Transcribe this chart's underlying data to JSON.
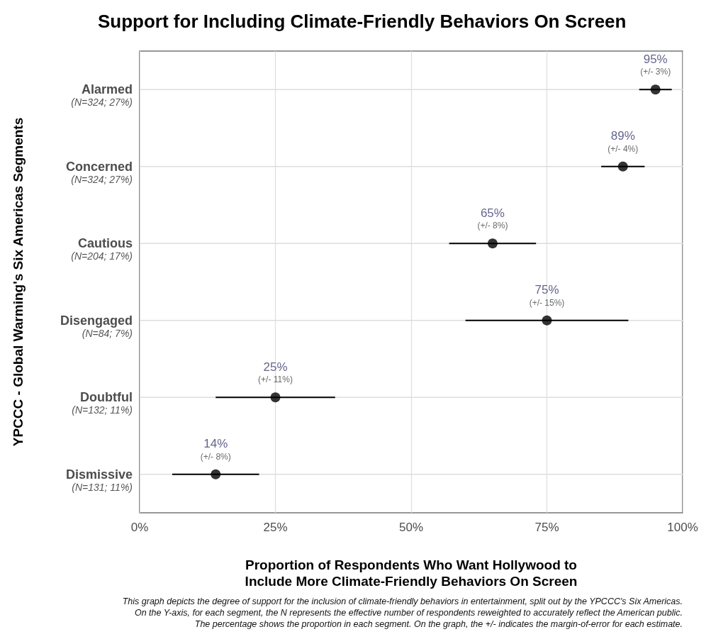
{
  "chart_data": {
    "type": "scatter",
    "orientation": "horizontal",
    "title": "Support for Including Climate-Friendly Behaviors On Screen",
    "xlabel": "Proportion of Respondents Who Want Hollywood to\nInclude More Climate-Friendly Behaviors On Screen",
    "ylabel": "YPCCC - Global Warming's Six Americas Segments",
    "categories": [
      "Alarmed\n(N=324; 27%)",
      "Concerned\n(N=324; 27%)",
      "Cautious\n(N=204; 17%)",
      "Disengaged\n(N=84; 7%)",
      "Doubtful\n(N=132; 11%)",
      "Dismissive\n(N=131; 11%)"
    ],
    "values": [
      95,
      89,
      65,
      75,
      25,
      14
    ],
    "errors": [
      3,
      4,
      8,
      15,
      11,
      8
    ],
    "value_labels": [
      "95%\n(+/- 3%)",
      "89%\n(+/- 4%)",
      "65%\n(+/- 8%)",
      "75%\n(+/- 15%)",
      "25%\n(+/- 11%)",
      "14%\n(+/- 8%)"
    ],
    "color": "#000000",
    "marker": "circle",
    "xlim": [
      0,
      100
    ],
    "xticks": [
      {
        "value": 0,
        "label": "0%"
      },
      {
        "value": 25,
        "label": "25%"
      },
      {
        "value": 50,
        "label": "50%"
      },
      {
        "value": 75,
        "label": "75%"
      },
      {
        "value": 100,
        "label": "100%"
      }
    ],
    "grid": true,
    "annotations": [
      "This graph depicts the degree of support for the inclusion of climate-friendly behaviors in entertainment, split out by the YPCCC's Six Americas.\nOn the Y-axis, for each segment, the N represents the effective number of respondents reweighted to accurately reflect the American public.\nThe percentage shows the proportion in each segment. On the graph, the +/- indicates the margin-of-error for each estimate."
    ]
  }
}
